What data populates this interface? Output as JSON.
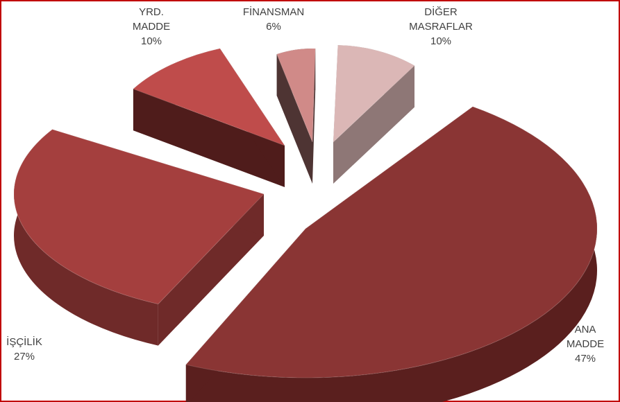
{
  "chart_data": {
    "type": "pie",
    "style": "3d-exploded",
    "title": "",
    "slices": [
      {
        "label_lines": [
          "ANA",
          "MADDE"
        ],
        "pct_label": "47%",
        "value": 47,
        "color": "#8a3534",
        "side": "#5a1f1e"
      },
      {
        "label_lines": [
          "İŞÇİLİK"
        ],
        "pct_label": "27%",
        "value": 27,
        "color": "#a43f3e",
        "side": "#6f2a29"
      },
      {
        "label_lines": [
          "YRD.",
          "MADDE"
        ],
        "pct_label": "10%",
        "value": 10,
        "color": "#bf4c4b",
        "side": "#4f1c1b"
      },
      {
        "label_lines": [
          "FİNANSMAN"
        ],
        "pct_label": "6%",
        "value": 6,
        "color": "#d08a88",
        "side": "#4e3433"
      },
      {
        "label_lines": [
          "DİĞER",
          "MASRAFLAR"
        ],
        "pct_label": "10%",
        "value": 10,
        "color": "#dbb7b6",
        "side": "#8e7776"
      }
    ]
  }
}
